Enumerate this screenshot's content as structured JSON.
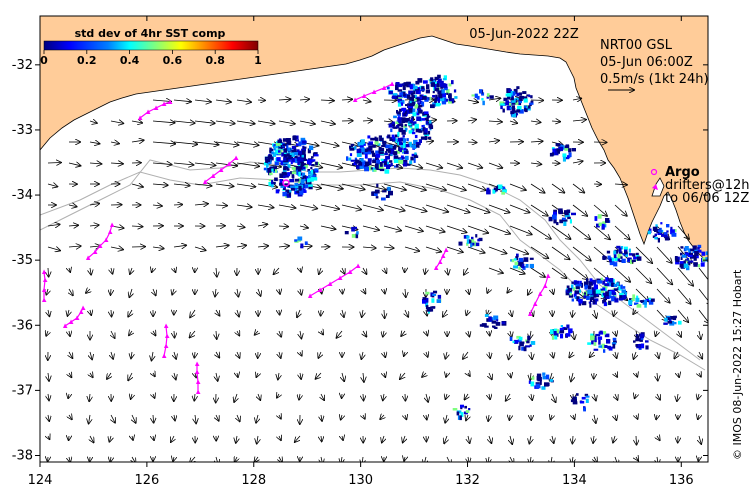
{
  "header": {
    "date_label": "05-Jun-2022 22Z",
    "product_line1": "NRT00 GSL",
    "product_line2": "05-Jun 06:00Z",
    "scale_label": "0.5m/s (1kt 24h)"
  },
  "colorbar": {
    "title": "std dev of 4hr SST comp",
    "tick_labels": [
      "0",
      "0.2",
      "0.4",
      "0.6",
      "0.8",
      "1"
    ],
    "colors": [
      "#00007f",
      "#0000ff",
      "#007fff",
      "#00ffff",
      "#7fff7f",
      "#ffff00",
      "#ff7f00",
      "#ff0000",
      "#7f0000"
    ]
  },
  "legend": {
    "argo_label": "Argo",
    "drifters_label": "drifters@12h",
    "drifters_sub": "to 06/06 12Z",
    "marker_color": "#ff00ff"
  },
  "axes": {
    "x_ticks": [
      124,
      126,
      128,
      130,
      132,
      134,
      136
    ],
    "y_ticks": [
      -32,
      -33,
      -34,
      -35,
      -36,
      -37,
      -38
    ],
    "x_tick_labels": [
      "124",
      "126",
      "128",
      "130",
      "132",
      "134",
      "136"
    ],
    "y_tick_labels": [
      "-32",
      "-33",
      "-34",
      "-35",
      "-36",
      "-37",
      "-38"
    ],
    "lon_range": [
      124,
      136.5
    ],
    "lat_range": [
      -38.1,
      -31.25
    ]
  },
  "credit": "© IMOS 08-Jun-2022 15:27 Hobart",
  "colors": {
    "land": "#ffcc99",
    "ocean": "#ffffff",
    "arrows": "#000000",
    "bathymetry": "#b0b0b0",
    "argo": "#ff00ff"
  }
}
